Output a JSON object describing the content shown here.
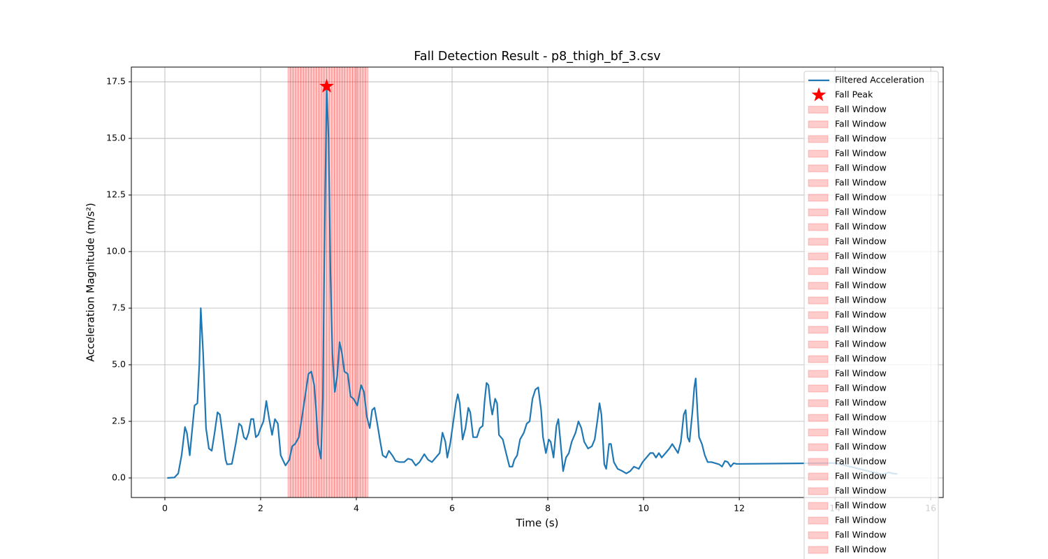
{
  "chart_data": {
    "type": "line",
    "title": "Fall Detection Result - p8_thigh_bf_3.csv",
    "xlabel": "Time (s)",
    "ylabel": "Acceleration Magnitude (m/s²)",
    "xlim": [
      -0.7,
      16.26
    ],
    "ylim": [
      -0.864,
      18.15
    ],
    "xticks": [
      0,
      2,
      4,
      6,
      8,
      10,
      12,
      14,
      16
    ],
    "yticks": [
      {
        "value": 0,
        "label": "0.0"
      },
      2.5,
      {
        "value": 5,
        "label": "5.0"
      },
      7.5,
      {
        "value": 10,
        "label": "10.0"
      },
      12.5,
      {
        "value": 15,
        "label": "15.0"
      },
      17.5
    ],
    "grid": true,
    "legend": "upper right",
    "series": [
      {
        "name": "Filtered Acceleration",
        "color": "#1f77b4",
        "x": [
          0.05,
          0.2,
          0.28,
          0.35,
          0.42,
          0.46,
          0.52,
          0.56,
          0.62,
          0.68,
          0.72,
          0.75,
          0.8,
          0.86,
          0.92,
          0.98,
          1.04,
          1.1,
          1.15,
          1.2,
          1.27,
          1.3,
          1.4,
          1.48,
          1.55,
          1.6,
          1.65,
          1.7,
          1.75,
          1.8,
          1.85,
          1.9,
          1.95,
          2.0,
          2.06,
          2.12,
          2.18,
          2.24,
          2.3,
          2.36,
          2.42,
          2.52,
          2.6,
          2.66,
          2.72,
          2.8,
          2.88,
          2.95,
          3.0,
          3.06,
          3.12,
          3.16,
          3.2,
          3.26,
          3.3,
          3.33,
          3.38,
          3.42,
          3.46,
          3.5,
          3.55,
          3.6,
          3.65,
          3.7,
          3.75,
          3.82,
          3.88,
          3.94,
          4.02,
          4.1,
          4.16,
          4.22,
          4.28,
          4.33,
          4.38,
          4.43,
          4.5,
          4.55,
          4.62,
          4.68,
          4.75,
          4.82,
          4.9,
          5.0,
          5.08,
          5.16,
          5.24,
          5.32,
          5.42,
          5.5,
          5.58,
          5.66,
          5.74,
          5.8,
          5.86,
          5.9,
          5.96,
          6.02,
          6.08,
          6.12,
          6.16,
          6.22,
          6.28,
          6.34,
          6.38,
          6.44,
          6.52,
          6.58,
          6.64,
          6.68,
          6.72,
          6.76,
          6.8,
          6.84,
          6.9,
          6.94,
          6.98,
          7.06,
          7.14,
          7.2,
          7.26,
          7.3,
          7.36,
          7.42,
          7.5,
          7.56,
          7.62,
          7.68,
          7.74,
          7.8,
          7.86,
          7.9,
          7.96,
          8.02,
          8.06,
          8.12,
          8.18,
          8.22,
          8.26,
          8.32,
          8.38,
          8.44,
          8.5,
          8.58,
          8.64,
          8.7,
          8.76,
          8.84,
          8.92,
          8.98,
          9.04,
          9.08,
          9.12,
          9.18,
          9.22,
          9.28,
          9.32,
          9.38,
          9.46,
          9.56,
          9.64,
          9.72,
          9.8,
          9.9,
          9.98,
          10.06,
          10.14,
          10.2,
          10.26,
          10.32,
          10.38,
          10.46,
          10.54,
          10.6,
          10.66,
          10.72,
          10.78,
          10.84,
          10.88,
          10.92,
          10.96,
          11.02,
          11.06,
          11.09,
          11.13,
          11.16,
          11.22,
          11.28,
          11.34,
          11.42,
          11.5,
          11.58,
          11.64,
          11.7,
          11.76,
          11.82,
          11.88,
          11.95,
          14.0,
          15.0,
          15.12,
          15.2,
          15.3
        ],
        "values": [
          0.0,
          0.02,
          0.2,
          1.0,
          2.25,
          2.0,
          1.0,
          1.9,
          3.2,
          3.3,
          5.0,
          7.5,
          5.5,
          2.2,
          1.3,
          1.2,
          2.0,
          2.9,
          2.8,
          2.0,
          0.8,
          0.6,
          0.62,
          1.5,
          2.4,
          2.3,
          1.8,
          1.7,
          2.0,
          2.6,
          2.6,
          1.8,
          1.9,
          2.2,
          2.5,
          3.4,
          2.6,
          1.9,
          2.6,
          2.4,
          1.0,
          0.55,
          0.8,
          1.4,
          1.5,
          1.8,
          2.9,
          3.9,
          4.6,
          4.7,
          4.1,
          3.0,
          1.5,
          0.85,
          3.5,
          9.5,
          17.2,
          15.0,
          9.0,
          5.5,
          3.8,
          4.5,
          6.0,
          5.5,
          4.7,
          4.6,
          3.6,
          3.5,
          3.2,
          4.1,
          3.8,
          2.7,
          2.2,
          3.0,
          3.1,
          2.5,
          1.6,
          1.0,
          0.9,
          1.2,
          1.0,
          0.75,
          0.7,
          0.7,
          0.85,
          0.8,
          0.55,
          0.7,
          1.05,
          0.8,
          0.7,
          0.9,
          1.1,
          2.0,
          1.6,
          0.9,
          1.5,
          2.4,
          3.3,
          3.7,
          3.3,
          1.7,
          2.2,
          3.1,
          2.9,
          1.8,
          1.8,
          2.2,
          2.3,
          3.4,
          4.2,
          4.1,
          3.3,
          2.8,
          3.5,
          3.3,
          1.9,
          1.7,
          1.0,
          0.5,
          0.5,
          0.8,
          1.0,
          1.7,
          2.0,
          2.4,
          2.5,
          3.5,
          3.9,
          4.0,
          3.0,
          1.8,
          1.1,
          1.7,
          1.6,
          0.9,
          2.3,
          2.6,
          1.7,
          0.3,
          0.9,
          1.1,
          1.6,
          2.0,
          2.5,
          2.2,
          1.6,
          1.3,
          1.4,
          1.7,
          2.6,
          3.3,
          2.8,
          0.6,
          0.4,
          1.5,
          1.5,
          0.7,
          0.4,
          0.3,
          0.2,
          0.3,
          0.5,
          0.4,
          0.7,
          0.9,
          1.1,
          1.1,
          0.9,
          1.1,
          0.9,
          1.1,
          1.3,
          1.5,
          1.3,
          1.1,
          1.6,
          2.8,
          3.0,
          1.8,
          1.6,
          2.9,
          4.0,
          4.4,
          2.8,
          1.8,
          1.5,
          1.0,
          0.7,
          0.7,
          0.65,
          0.6,
          0.5,
          0.75,
          0.7,
          0.5,
          0.65,
          0.62,
          0.66,
          0.15,
          0.25,
          0.2,
          0.18
        ]
      }
    ],
    "peak": {
      "name": "Fall Peak",
      "color": "#ff0000",
      "x": 3.38,
      "y": 17.3
    },
    "fall_windows": {
      "name": "Fall Window",
      "color": "#ff0000",
      "alpha": 0.2,
      "starts": [
        2.57,
        2.624,
        2.678,
        2.732,
        2.786,
        2.84,
        2.894,
        2.948,
        3.002,
        3.056,
        3.11,
        3.164,
        3.218,
        3.272,
        3.326,
        3.38,
        3.434,
        3.488,
        3.542,
        3.596,
        3.65,
        3.704,
        3.758,
        3.812,
        3.866,
        3.92,
        3.974,
        4.028,
        4.082,
        4.136,
        4.19
      ],
      "ends": [
        2.624,
        2.678,
        2.732,
        2.786,
        2.84,
        2.894,
        2.948,
        3.002,
        3.056,
        3.11,
        3.164,
        3.218,
        3.272,
        3.326,
        3.38,
        3.434,
        3.488,
        3.542,
        3.596,
        3.65,
        3.704,
        3.758,
        3.812,
        3.866,
        3.92,
        3.974,
        4.028,
        4.082,
        4.136,
        4.19,
        4.244
      ]
    }
  }
}
